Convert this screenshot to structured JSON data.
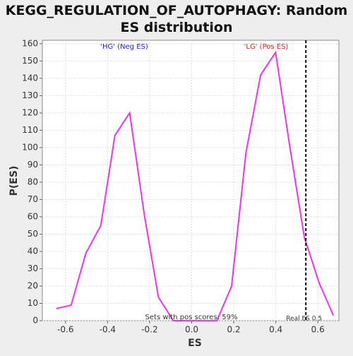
{
  "chart_data": {
    "type": "line",
    "title": "KEGG_REGULATION_OF_AUTOPHAGY: Random ES distribution",
    "x_label": "ES",
    "y_label": "P(ES)",
    "x": [
      -0.644,
      -0.573,
      -0.503,
      -0.432,
      -0.365,
      -0.295,
      -0.225,
      -0.158,
      -0.087,
      -0.017,
      0.05,
      0.12,
      0.19,
      0.258,
      0.328,
      0.399,
      0.466,
      0.536,
      0.607,
      0.674
    ],
    "values": [
      7,
      9,
      39,
      55,
      107,
      120,
      61,
      13.5,
      0,
      0,
      0,
      0,
      20,
      97,
      142,
      155,
      101,
      48,
      21.5,
      3
    ],
    "color": "#ee33ee",
    "xlim": [
      -0.71,
      0.7
    ],
    "ylim": [
      0,
      162
    ],
    "xticks": [
      -0.6,
      -0.4,
      -0.2,
      {
        "value": 0,
        "label": "0.0"
      },
      0.2,
      0.4,
      0.6
    ],
    "yticks": [
      0,
      10,
      20,
      30,
      40,
      50,
      60,
      70,
      80,
      90,
      100,
      110,
      120,
      130,
      140,
      150,
      160
    ],
    "grid": true,
    "real_es": 0.543,
    "real_es_label": "Real ES 0.5",
    "annotations": [
      {
        "text": "'HG' (Neg ES)",
        "color": "#2222dd"
      },
      {
        "text": "'LG' (Pos ES)",
        "color": "#dd2222"
      },
      {
        "text": "Sets with pos scores: 59%",
        "color": "#333333"
      }
    ]
  }
}
